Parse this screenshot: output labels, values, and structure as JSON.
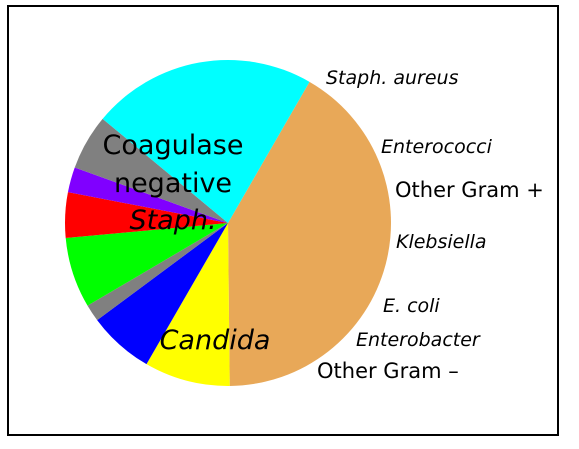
{
  "chart_data": {
    "type": "pie",
    "title": "",
    "slices": [
      {
        "label": "Coagulase negative Staph.",
        "value": 41.5,
        "color": "#E8A858"
      },
      {
        "label": "Staph. aureus",
        "value": 8.5,
        "color": "#FFFF00"
      },
      {
        "label": "Enterococci",
        "value": 6.5,
        "color": "#0000FF"
      },
      {
        "label": "Other Gram +",
        "value": 1.7,
        "color": "#808080"
      },
      {
        "label": "Klebsiella",
        "value": 7.0,
        "color": "#00FF00"
      },
      {
        "label": "E. coli",
        "value": 4.5,
        "color": "#FF0000"
      },
      {
        "label": "Enterobacter",
        "value": 2.5,
        "color": "#8000FF"
      },
      {
        "label": "Other Gram –",
        "value": 5.5,
        "color": "#808080"
      },
      {
        "label": "Candida",
        "value": 22.3,
        "color": "#00FFFF"
      }
    ],
    "start_angle_deg": 300,
    "direction": "clockwise"
  }
}
